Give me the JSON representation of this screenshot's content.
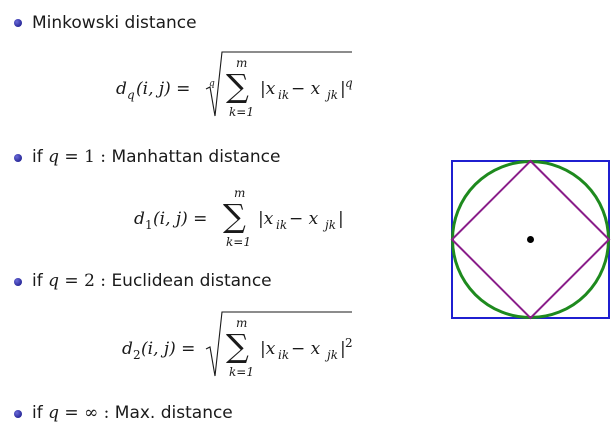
{
  "items": [
    {
      "text": "Minkowski distance"
    },
    {
      "prefix": "if",
      "var": "q",
      "eq": "= 1 :",
      "text": "Manhattan distance"
    },
    {
      "prefix": "if",
      "var": "q",
      "eq": "= 2 :",
      "text": "Euclidean distance"
    },
    {
      "prefix": "if",
      "var": "q",
      "eq": "= ∞ :",
      "text": "Max. distance"
    }
  ],
  "formulas": {
    "minkowski": {
      "lhs_fn": "d",
      "lhs_sub": "q",
      "lhs_args": "(i, j) =",
      "root_index": "q",
      "sum_top": "m",
      "sum_bottom": "k=1",
      "body": "|x",
      "sub1": "ik",
      "minus": " − x",
      "sub2": "jk",
      "close": "|",
      "power": "q"
    },
    "manhattan": {
      "lhs_fn": "d",
      "lhs_sub": "1",
      "lhs_args": "(i, j) =",
      "sum_top": "m",
      "sum_bottom": "k=1",
      "body": "|x",
      "sub1": "ik",
      "minus": " − x",
      "sub2": "jk",
      "close": "|"
    },
    "euclidean": {
      "lhs_fn": "d",
      "lhs_sub": "2",
      "lhs_args": "(i, j) =",
      "sum_top": "m",
      "sum_bottom": "k=1",
      "body": "|x",
      "sub1": "ik",
      "minus": " − x",
      "sub2": "jk",
      "close": "|",
      "power": "2"
    }
  },
  "figure": {
    "square_color": "#1f1fd0",
    "circle_color": "#1e8a1e",
    "diamond_color": "#8a1e8a",
    "center_color": "#000000"
  }
}
